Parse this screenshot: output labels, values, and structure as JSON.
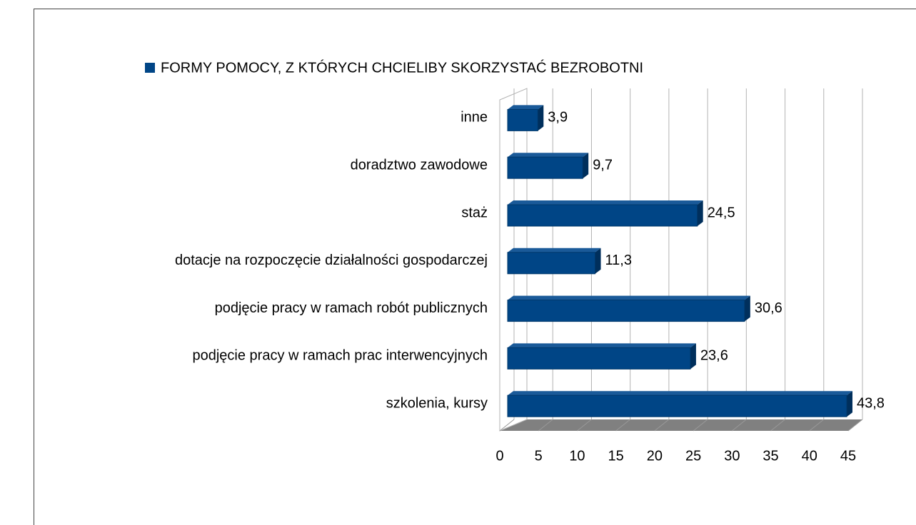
{
  "chart_data": {
    "type": "bar",
    "orientation": "horizontal",
    "categories": [
      "inne",
      "doradztwo zawodowe",
      "staż",
      "dotacje na rozpoczęcie działalności gospodarczej",
      "podjęcie pracy w ramach robót publicznych",
      "podjęcie pracy w ramach prac interwencyjnych",
      "szkolenia, kursy"
    ],
    "series": [
      {
        "name": "FORMY POMOCY, Z KTÓRYCH CHCIELIBY SKORZYSTAĆ BEZROBOTNI",
        "color": "#004586",
        "values": [
          3.9,
          9.7,
          24.5,
          11.3,
          30.6,
          23.6,
          43.8
        ],
        "value_labels": [
          "3,9",
          "9,7",
          "24,5",
          "11,3",
          "30,6",
          "23,6",
          "43,8"
        ]
      }
    ],
    "xlim": [
      0,
      45
    ],
    "xticks": [
      0,
      5,
      10,
      15,
      20,
      25,
      30,
      35,
      40,
      45
    ],
    "grid": true,
    "legend": "top"
  }
}
